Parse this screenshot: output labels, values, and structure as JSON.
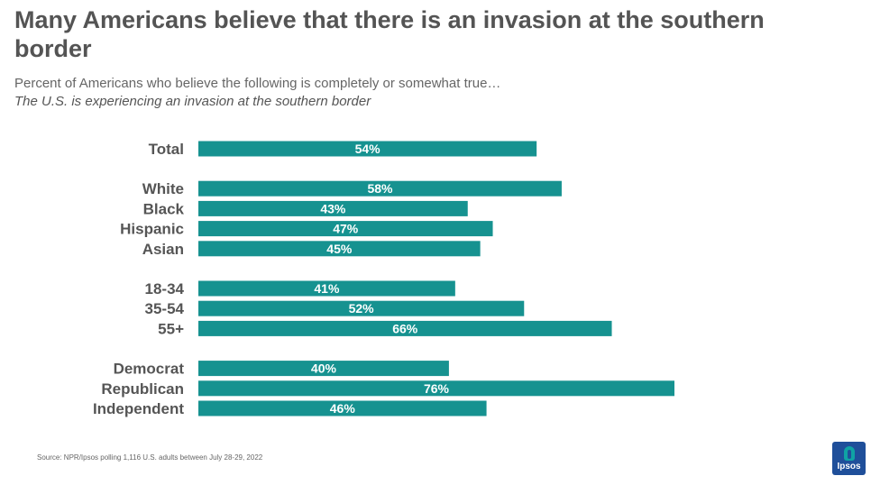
{
  "title": "Many Americans believe that there is an invasion at the southern border",
  "subtitle": "Percent of Americans who believe the following is completely or somewhat true…",
  "subtitle2": "The U.S. is experiencing an invasion at the southern border",
  "source": "Source: NPR/Ipsos polling 1,116 U.S. adults between July 28-29, 2022",
  "logo_text": "Ipsos",
  "colors": {
    "bar": "#169290",
    "bar_label": "#ffffff",
    "category_label": "#555555"
  },
  "chart_data": {
    "type": "bar",
    "orientation": "horizontal",
    "categories": [
      "Total",
      "White",
      "Black",
      "Hispanic",
      "Asian",
      "18-34",
      "35-54",
      "55+",
      "Democrat",
      "Republican",
      "Independent"
    ],
    "values": [
      54,
      58,
      43,
      47,
      45,
      41,
      52,
      66,
      40,
      76,
      46
    ],
    "value_labels": [
      "54%",
      "58%",
      "43%",
      "47%",
      "45%",
      "41%",
      "52%",
      "66%",
      "40%",
      "76%",
      "46%"
    ],
    "groups": [
      [
        "Total"
      ],
      [
        "White",
        "Black",
        "Hispanic",
        "Asian"
      ],
      [
        "18-34",
        "35-54",
        "55+"
      ],
      [
        "Democrat",
        "Republican",
        "Independent"
      ]
    ],
    "unit": "%",
    "xlim": [
      0,
      76
    ],
    "grid": false,
    "legend": "none"
  }
}
